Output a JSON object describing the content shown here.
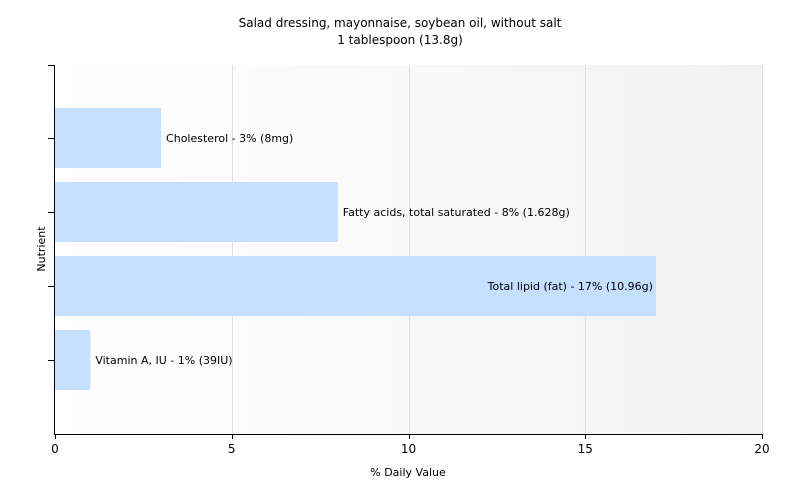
{
  "chart_data": {
    "type": "bar",
    "orientation": "horizontal",
    "title": "Salad dressing, mayonnaise, soybean oil, without salt",
    "subtitle": "1 tablespoon (13.8g)",
    "xlabel": "% Daily Value",
    "ylabel": "Nutrient",
    "xlim": [
      0,
      20
    ],
    "xticks": [
      0,
      5,
      10,
      15,
      20
    ],
    "grid": true,
    "categories": [
      "Cholesterol",
      "Fatty acids, total saturated",
      "Total lipid (fat)",
      "Vitamin A, IU"
    ],
    "values": [
      3,
      8,
      17,
      1
    ],
    "labels": [
      "Cholesterol - 3% (8mg)",
      "Fatty acids, total saturated - 8% (1.628g)",
      "Total lipid (fat) - 17% (10.96g)",
      "Vitamin A, IU - 1% (39IU)"
    ],
    "bar_color": "#c5dfff",
    "background_gradient": [
      "#ffffff",
      "#f2f2f2"
    ],
    "grid_color": "#e0e0e0"
  }
}
